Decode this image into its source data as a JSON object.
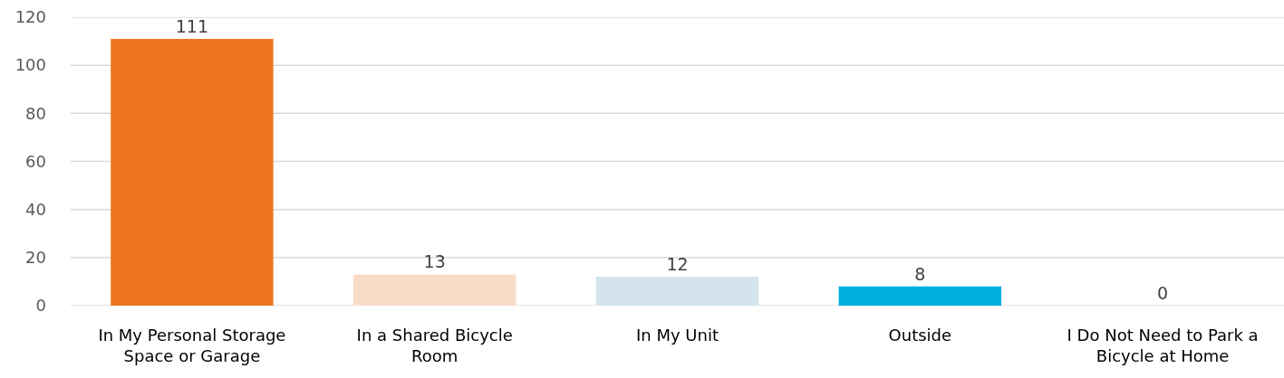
{
  "chart_data": {
    "type": "bar",
    "categories": [
      "In My Personal Storage Space or Garage",
      "In a Shared Bicycle Room",
      "In My Unit",
      "Outside",
      "I Do Not Need to Park a Bicycle at Home"
    ],
    "values": [
      111,
      13,
      12,
      8,
      0
    ],
    "colors": [
      "#ee7623",
      "#f9dcc8",
      "#d4e4ec",
      "#00b0dc",
      "#00b0dc"
    ],
    "ylim": [
      0,
      120
    ],
    "yticks": [
      0,
      20,
      40,
      60,
      80,
      100,
      120
    ],
    "grid": "y",
    "data_labels": true
  }
}
